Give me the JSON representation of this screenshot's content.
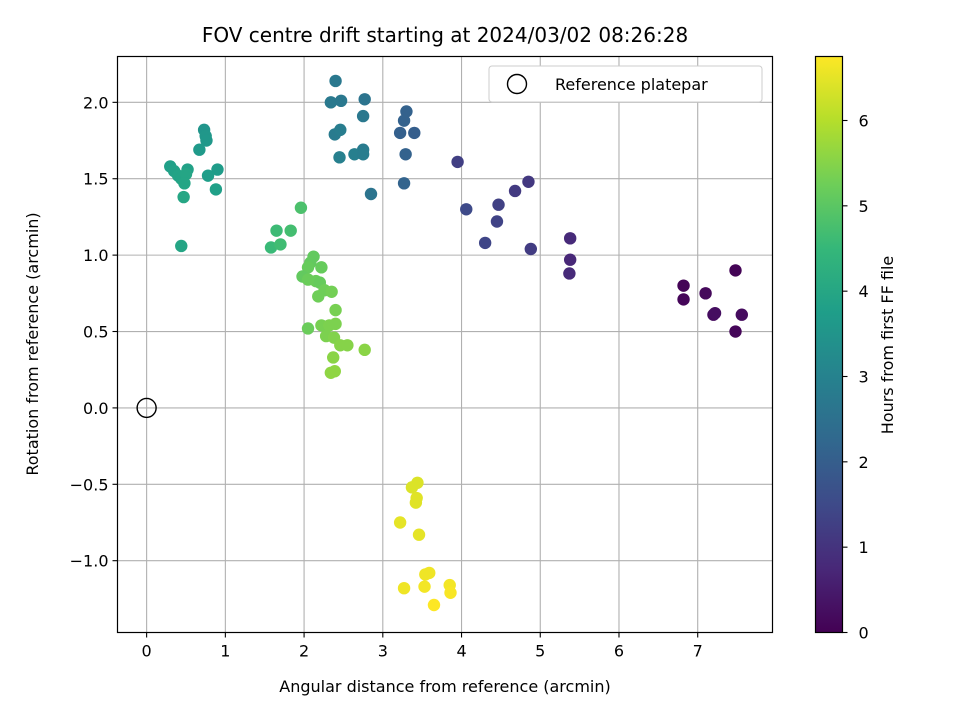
{
  "chart_data": {
    "type": "scatter",
    "title": "FOV centre drift starting at 2024/03/02 08:26:28",
    "xlabel": "Angular distance from reference (arcmin)",
    "ylabel": "Rotation from reference (arcmin)",
    "xlim": [
      -0.37,
      7.95
    ],
    "ylim": [
      -1.47,
      2.3
    ],
    "xticks": [
      0,
      1,
      2,
      3,
      4,
      5,
      6,
      7
    ],
    "yticks": [
      -1.0,
      -0.5,
      0.0,
      0.5,
      1.0,
      1.5,
      2.0
    ],
    "ytick_labels": [
      "−1.0",
      "−0.5",
      "0.0",
      "0.5",
      "1.0",
      "1.5",
      "2.0"
    ],
    "grid": true,
    "colormap": "viridis",
    "colorbar": {
      "label": "Hours from first FF file",
      "range": [
        0,
        6.75
      ],
      "ticks": [
        0,
        1,
        2,
        3,
        4,
        5,
        6
      ]
    },
    "legend": {
      "position": "top-right",
      "entries": [
        {
          "label": "Reference platepar",
          "marker": "open-circle"
        }
      ]
    },
    "reference_point": {
      "x": 0,
      "y": 0
    },
    "series": [
      {
        "values": [
          {
            "x": 6.82,
            "y": 0.8,
            "c": 0.05
          },
          {
            "x": 6.82,
            "y": 0.71,
            "c": 0.1
          },
          {
            "x": 7.1,
            "y": 0.75,
            "c": 0.15
          },
          {
            "x": 7.2,
            "y": 0.61,
            "c": 0.2
          },
          {
            "x": 7.22,
            "y": 0.62,
            "c": 0.25
          },
          {
            "x": 7.48,
            "y": 0.9,
            "c": 0.05
          },
          {
            "x": 7.48,
            "y": 0.5,
            "c": 0.1
          },
          {
            "x": 7.56,
            "y": 0.61,
            "c": 0.2
          },
          {
            "x": 5.38,
            "y": 1.11,
            "c": 0.8
          },
          {
            "x": 5.38,
            "y": 0.97,
            "c": 0.75
          },
          {
            "x": 5.37,
            "y": 0.88,
            "c": 0.8
          },
          {
            "x": 4.85,
            "y": 1.48,
            "c": 1.1
          },
          {
            "x": 4.68,
            "y": 1.42,
            "c": 1.15
          },
          {
            "x": 4.88,
            "y": 1.04,
            "c": 1.2
          },
          {
            "x": 4.47,
            "y": 1.33,
            "c": 1.3
          },
          {
            "x": 4.45,
            "y": 1.22,
            "c": 1.35
          },
          {
            "x": 4.3,
            "y": 1.08,
            "c": 1.4
          },
          {
            "x": 4.06,
            "y": 1.3,
            "c": 1.5
          },
          {
            "x": 3.95,
            "y": 1.61,
            "c": 1.25
          },
          {
            "x": 3.3,
            "y": 1.94,
            "c": 2.1
          },
          {
            "x": 3.27,
            "y": 1.88,
            "c": 2.1
          },
          {
            "x": 3.22,
            "y": 1.8,
            "c": 2.05
          },
          {
            "x": 3.4,
            "y": 1.8,
            "c": 2.0
          },
          {
            "x": 3.29,
            "y": 1.66,
            "c": 2.1
          },
          {
            "x": 3.27,
            "y": 1.47,
            "c": 2.15
          },
          {
            "x": 2.85,
            "y": 1.4,
            "c": 2.6
          },
          {
            "x": 2.4,
            "y": 2.14,
            "c": 2.7
          },
          {
            "x": 2.34,
            "y": 2.0,
            "c": 2.75
          },
          {
            "x": 2.47,
            "y": 2.01,
            "c": 2.7
          },
          {
            "x": 2.77,
            "y": 2.02,
            "c": 2.6
          },
          {
            "x": 2.75,
            "y": 1.91,
            "c": 2.7
          },
          {
            "x": 2.39,
            "y": 1.79,
            "c": 2.8
          },
          {
            "x": 2.46,
            "y": 1.82,
            "c": 2.85
          },
          {
            "x": 2.75,
            "y": 1.69,
            "c": 2.8
          },
          {
            "x": 2.64,
            "y": 1.66,
            "c": 2.9
          },
          {
            "x": 2.75,
            "y": 1.66,
            "c": 2.85
          },
          {
            "x": 2.45,
            "y": 1.64,
            "c": 2.95
          },
          {
            "x": 0.73,
            "y": 1.82,
            "c": 3.5
          },
          {
            "x": 0.75,
            "y": 1.78,
            "c": 3.55
          },
          {
            "x": 0.76,
            "y": 1.75,
            "c": 3.6
          },
          {
            "x": 0.67,
            "y": 1.69,
            "c": 3.65
          },
          {
            "x": 0.9,
            "y": 1.56,
            "c": 3.7
          },
          {
            "x": 0.78,
            "y": 1.52,
            "c": 3.75
          },
          {
            "x": 0.88,
            "y": 1.43,
            "c": 3.8
          },
          {
            "x": 0.3,
            "y": 1.58,
            "c": 3.8
          },
          {
            "x": 0.35,
            "y": 1.55,
            "c": 3.85
          },
          {
            "x": 0.52,
            "y": 1.56,
            "c": 3.85
          },
          {
            "x": 0.4,
            "y": 1.52,
            "c": 3.9
          },
          {
            "x": 0.44,
            "y": 1.5,
            "c": 3.9
          },
          {
            "x": 0.5,
            "y": 1.53,
            "c": 3.95
          },
          {
            "x": 0.48,
            "y": 1.47,
            "c": 3.95
          },
          {
            "x": 0.47,
            "y": 1.38,
            "c": 4.0
          },
          {
            "x": 0.44,
            "y": 1.06,
            "c": 3.95
          },
          {
            "x": 1.96,
            "y": 1.31,
            "c": 4.8
          },
          {
            "x": 1.83,
            "y": 1.16,
            "c": 4.7
          },
          {
            "x": 1.65,
            "y": 1.16,
            "c": 4.6
          },
          {
            "x": 1.58,
            "y": 1.05,
            "c": 4.55
          },
          {
            "x": 1.7,
            "y": 1.07,
            "c": 4.65
          },
          {
            "x": 2.12,
            "y": 0.99,
            "c": 5.1
          },
          {
            "x": 2.08,
            "y": 0.95,
            "c": 5.1
          },
          {
            "x": 2.05,
            "y": 0.92,
            "c": 5.15
          },
          {
            "x": 2.22,
            "y": 0.92,
            "c": 5.15
          },
          {
            "x": 1.98,
            "y": 0.86,
            "c": 5.1
          },
          {
            "x": 2.05,
            "y": 0.84,
            "c": 5.2
          },
          {
            "x": 2.15,
            "y": 0.83,
            "c": 5.2
          },
          {
            "x": 2.2,
            "y": 0.82,
            "c": 5.15
          },
          {
            "x": 2.26,
            "y": 0.77,
            "c": 5.25
          },
          {
            "x": 2.35,
            "y": 0.76,
            "c": 5.3
          },
          {
            "x": 2.18,
            "y": 0.73,
            "c": 5.25
          },
          {
            "x": 2.4,
            "y": 0.64,
            "c": 5.35
          },
          {
            "x": 2.22,
            "y": 0.54,
            "c": 5.35
          },
          {
            "x": 2.05,
            "y": 0.52,
            "c": 5.2
          },
          {
            "x": 2.32,
            "y": 0.54,
            "c": 5.4
          },
          {
            "x": 2.4,
            "y": 0.55,
            "c": 5.4
          },
          {
            "x": 2.28,
            "y": 0.47,
            "c": 5.4
          },
          {
            "x": 2.38,
            "y": 0.46,
            "c": 5.45
          },
          {
            "x": 2.46,
            "y": 0.41,
            "c": 5.5
          },
          {
            "x": 2.55,
            "y": 0.41,
            "c": 5.5
          },
          {
            "x": 2.77,
            "y": 0.38,
            "c": 5.55
          },
          {
            "x": 2.37,
            "y": 0.33,
            "c": 5.55
          },
          {
            "x": 2.34,
            "y": 0.23,
            "c": 5.6
          },
          {
            "x": 2.39,
            "y": 0.24,
            "c": 5.6
          },
          {
            "x": 3.44,
            "y": -0.49,
            "c": 6.4
          },
          {
            "x": 3.37,
            "y": -0.52,
            "c": 6.4
          },
          {
            "x": 3.43,
            "y": -0.59,
            "c": 6.45
          },
          {
            "x": 3.42,
            "y": -0.62,
            "c": 6.45
          },
          {
            "x": 3.22,
            "y": -0.75,
            "c": 6.5
          },
          {
            "x": 3.46,
            "y": -0.83,
            "c": 6.5
          },
          {
            "x": 3.59,
            "y": -1.08,
            "c": 6.6
          },
          {
            "x": 3.54,
            "y": -1.09,
            "c": 6.6
          },
          {
            "x": 3.27,
            "y": -1.18,
            "c": 6.6
          },
          {
            "x": 3.53,
            "y": -1.17,
            "c": 6.65
          },
          {
            "x": 3.85,
            "y": -1.16,
            "c": 6.65
          },
          {
            "x": 3.86,
            "y": -1.21,
            "c": 6.7
          },
          {
            "x": 3.65,
            "y": -1.29,
            "c": 6.75
          }
        ]
      }
    ]
  }
}
